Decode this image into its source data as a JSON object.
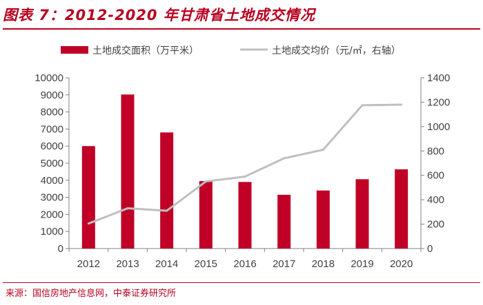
{
  "header": {
    "title": "图表 7：2012-2020 年甘肃省土地成交情况"
  },
  "footer": {
    "source": "来源：国信房地产信息网，中泰证券研究所"
  },
  "colors": {
    "accent": "#b8001f",
    "bar": "#c00026",
    "line": "#bfbfbf",
    "axis": "#808080",
    "text": "#404040"
  },
  "chart_data": {
    "type": "bar",
    "categories": [
      "2012",
      "2013",
      "2014",
      "2015",
      "2016",
      "2017",
      "2018",
      "2019",
      "2020"
    ],
    "series": [
      {
        "name": "土地成交面积（万平米）",
        "type": "bar",
        "axis": "left",
        "values": [
          6000,
          9020,
          6800,
          3950,
          3900,
          3150,
          3400,
          4060,
          4640
        ]
      },
      {
        "name": "土地成交均价（元/㎡，右轴）",
        "type": "line",
        "axis": "right",
        "values": [
          205,
          330,
          310,
          550,
          590,
          740,
          810,
          1175,
          1180
        ]
      }
    ],
    "yleft": {
      "min": 0,
      "max": 10000,
      "step": 1000,
      "ticks": [
        "0",
        "1000",
        "2000",
        "3000",
        "4000",
        "5000",
        "6000",
        "7000",
        "8000",
        "9000",
        "10000"
      ]
    },
    "yright": {
      "min": 0,
      "max": 1400,
      "step": 200,
      "ticks": [
        "0",
        "200",
        "400",
        "600",
        "800",
        "1000",
        "1200",
        "1400"
      ]
    },
    "legend_position": "top"
  }
}
